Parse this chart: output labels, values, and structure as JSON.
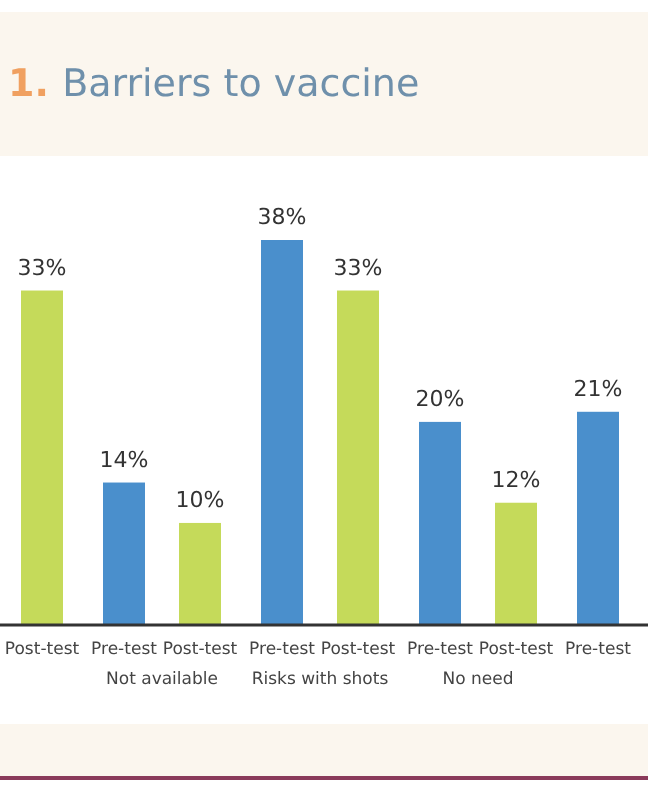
{
  "chart_data": {
    "type": "bar",
    "title": "1. Barriers to vaccine",
    "categories": [
      null,
      "Not available",
      "Risks with shots",
      "No need",
      null
    ],
    "series": [
      {
        "name": "Pre-test",
        "color": "#4a8fcc",
        "values": [
          null,
          14,
          38,
          20,
          21
        ],
        "value_labels": [
          null,
          "14%",
          "38%",
          "20%",
          "21%"
        ]
      },
      {
        "name": "Post-test",
        "color": "#c5da5a",
        "values": [
          33,
          10,
          33,
          12,
          null
        ],
        "value_labels": [
          "33%",
          "10%",
          "33%",
          "12%",
          null
        ]
      }
    ]
  }
}
